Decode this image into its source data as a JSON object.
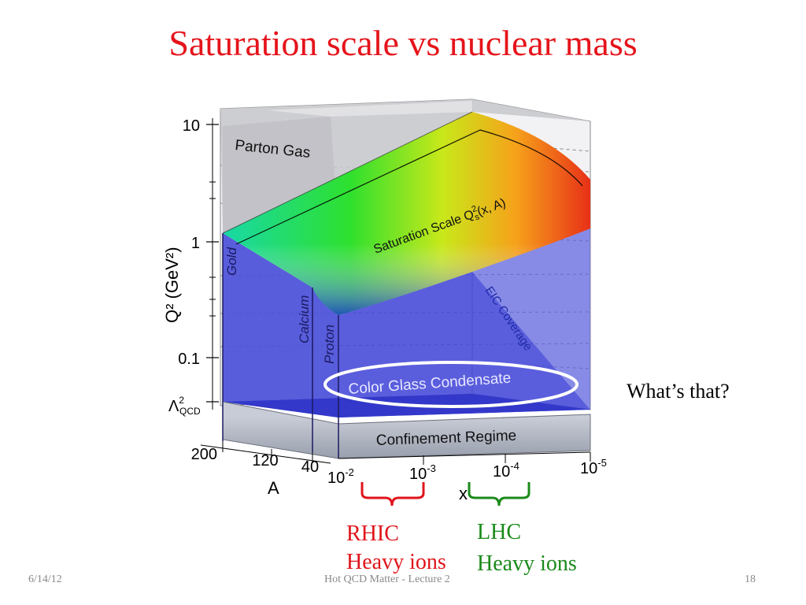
{
  "slide": {
    "title": "Saturation scale vs nuclear mass",
    "side_note": "What’s that?",
    "footer": {
      "date": "6/14/12",
      "center": "Hot QCD Matter - Lecture 2",
      "page": "18"
    }
  },
  "figure": {
    "y_axis": {
      "label": "Q² (GeV²)",
      "ticks": [
        "10",
        "1",
        "0.1"
      ],
      "lambda_label": "Λ",
      "lambda_sup": "2",
      "lambda_sub": "QCD"
    },
    "a_axis": {
      "label": "A",
      "ticks": [
        "200",
        "120",
        "40"
      ]
    },
    "x_axis": {
      "label": "x",
      "tick_base": "10",
      "ticks": [
        "-2",
        "-3",
        "-4",
        "-5"
      ]
    },
    "regions": {
      "parton_gas": "Parton Gas",
      "saturation_scale": "Saturation Scale Q",
      "saturation_sup": "2",
      "saturation_sub": "s",
      "saturation_args": "(x, A)",
      "cgc": "Color Glass Condensate",
      "confinement": "Confinement Regime",
      "eic": "EIC Coverage"
    },
    "nuclei": [
      "Gold",
      "Calcium",
      "Proton"
    ],
    "colors": {
      "title": "#e5141b",
      "rhic": "#e0141b",
      "lhc": "#1a8a1a",
      "cgc_fill": "#3f44d8"
    }
  },
  "annotations": {
    "rhic": {
      "line1": "RHIC",
      "line2": "Heavy ions"
    },
    "lhc": {
      "line1": "LHC",
      "line2": "Heavy ions"
    }
  }
}
